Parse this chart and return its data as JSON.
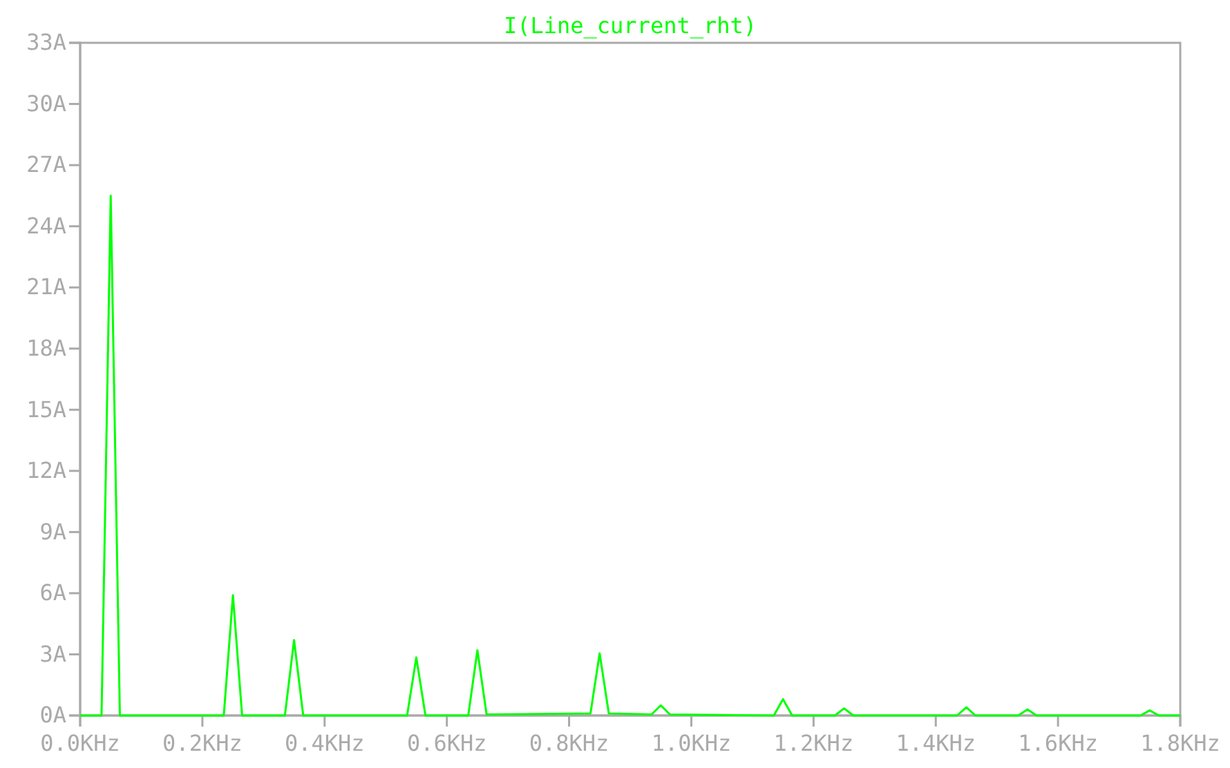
{
  "chart_data": {
    "type": "line",
    "title": "I(Line_current_rht)",
    "x": [
      0,
      0.035,
      0.05,
      0.065,
      0.235,
      0.25,
      0.265,
      0.335,
      0.35,
      0.365,
      0.535,
      0.55,
      0.565,
      0.635,
      0.65,
      0.665,
      0.835,
      0.85,
      0.865,
      0.935,
      0.95,
      0.965,
      1.135,
      1.15,
      1.165,
      1.235,
      1.25,
      1.265,
      1.435,
      1.45,
      1.465,
      1.535,
      1.55,
      1.565,
      1.735,
      1.75,
      1.765,
      1.8
    ],
    "series": [
      {
        "color": "#00ff00",
        "values": [
          0,
          0,
          25.5,
          0,
          0,
          5.9,
          0,
          0,
          3.7,
          0,
          0,
          2.85,
          0,
          0,
          3.2,
          0.05,
          0.1,
          3.05,
          0.1,
          0.05,
          0.5,
          0.05,
          0,
          0.8,
          0,
          0,
          0.35,
          0,
          0,
          0.4,
          0,
          0,
          0.3,
          0,
          0,
          0.25,
          0,
          0
        ]
      }
    ],
    "xlim": [
      0,
      1.8
    ],
    "xticks": [
      {
        "value": 0,
        "label": "0.0KHz"
      },
      {
        "value": 0.2,
        "label": "0.2KHz"
      },
      {
        "value": 0.4,
        "label": "0.4KHz"
      },
      {
        "value": 0.6,
        "label": "0.6KHz"
      },
      {
        "value": 0.8,
        "label": "0.8KHz"
      },
      {
        "value": 1.0,
        "label": "1.0KHz"
      },
      {
        "value": 1.2,
        "label": "1.2KHz"
      },
      {
        "value": 1.4,
        "label": "1.4KHz"
      },
      {
        "value": 1.6,
        "label": "1.6KHz"
      },
      {
        "value": 1.8,
        "label": "1.8KHz"
      }
    ],
    "ylim": [
      0,
      33
    ],
    "yticks": [
      {
        "value": 0,
        "label": "0A"
      },
      {
        "value": 3,
        "label": "3A"
      },
      {
        "value": 6,
        "label": "6A"
      },
      {
        "value": 9,
        "label": "9A"
      },
      {
        "value": 12,
        "label": "12A"
      },
      {
        "value": 15,
        "label": "15A"
      },
      {
        "value": 18,
        "label": "18A"
      },
      {
        "value": 21,
        "label": "21A"
      },
      {
        "value": 24,
        "label": "24A"
      },
      {
        "value": 27,
        "label": "27A"
      },
      {
        "value": 30,
        "label": "30A"
      },
      {
        "value": 33,
        "label": "33A"
      }
    ],
    "marker": "none",
    "line_style": "solid"
  }
}
